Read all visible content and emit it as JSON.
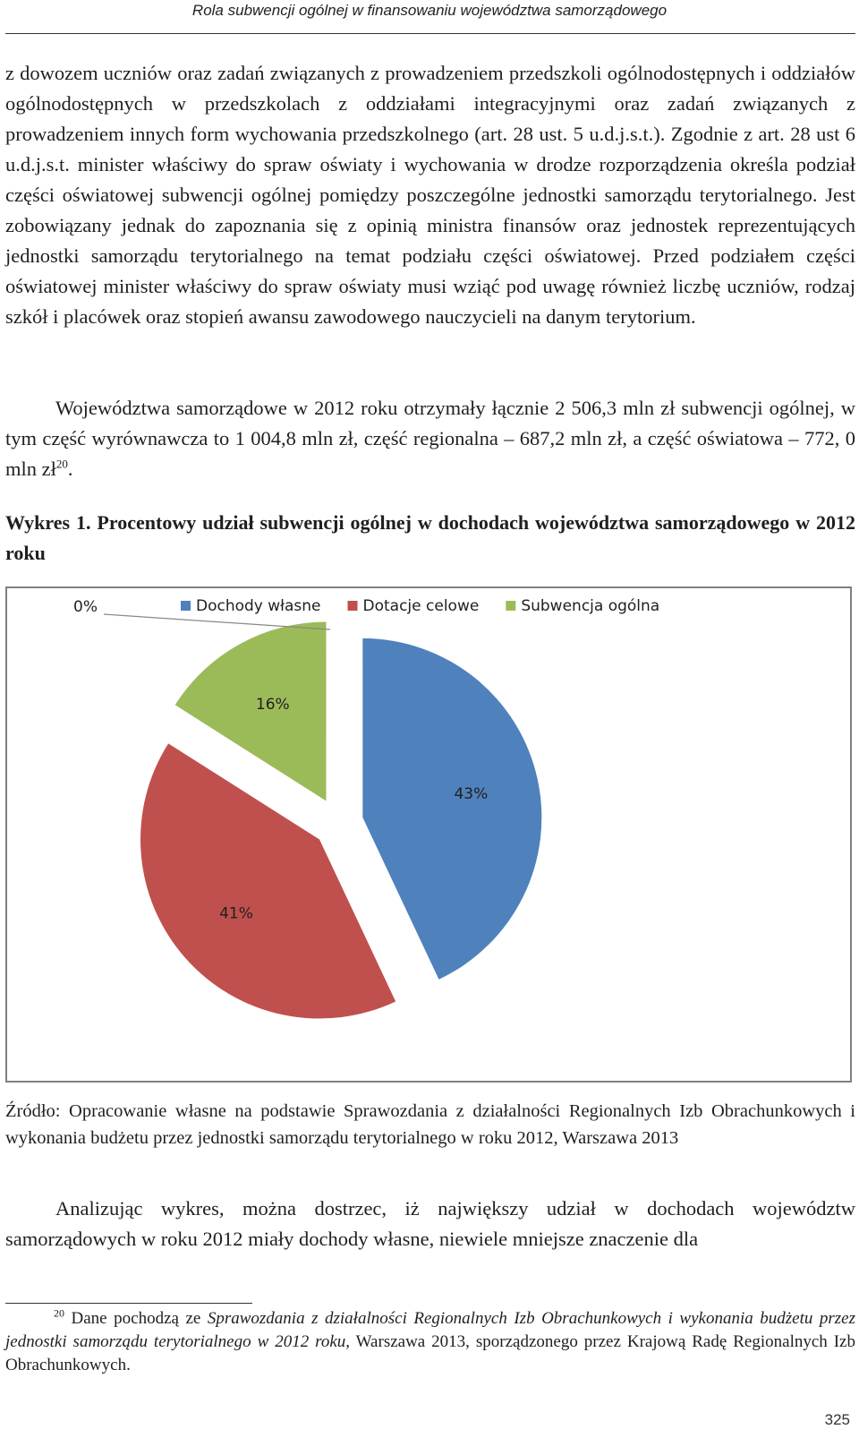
{
  "header": {
    "running_title": "Rola subwencji ogólnej w finansowaniu województwa samorządowego"
  },
  "paragraphs": {
    "p1": "z dowozem uczniów oraz zadań związanych z prowadzeniem przedszkoli ogólnodostępnych i oddziałów ogólnodostępnych w przedszkolach z oddziałami integracyjnymi oraz zadań związanych z prowadzeniem innych form wychowania przedszkolnego (art. 28 ust. 5 u.d.j.s.t.). Zgodnie z art. 28 ust 6 u.d.j.s.t. minister właściwy do spraw oświaty i wychowania w drodze rozporządzenia określa podział części oświatowej subwencji ogólnej pomiędzy poszczególne jednostki samorządu terytorialnego. Jest zobowiązany jednak do zapoznania się z opinią ministra finansów oraz jednostek reprezentujących jednostki samorządu terytorialnego na temat podziału części oświatowej. Przed podziałem części oświatowej minister właściwy do spraw oświaty musi wziąć pod uwagę również liczbę uczniów, rodzaj szkół i placówek oraz stopień awansu zawodowego nauczycieli na danym terytorium.",
    "p2": "Województwa samorządowe w 2012 roku otrzymały łącznie 2 506,3 mln zł subwencji ogólnej, w tym część wyrównawcza to 1 004,8 mln zł, część regionalna – 687,2 mln zł, a część oświatowa – 772, 0 mln zł",
    "p2_footnote_ref": "20",
    "p2_end": ".",
    "p3": "Analizując wykres, można dostrzec, iż największy udział w dochodach województw samorządowych w roku 2012 miały dochody własne, niewiele mniejsze znaczenie dla"
  },
  "figure": {
    "caption": "Wykres 1. Procentowy udział subwencji ogólnej w dochodach województwa samorządowego w 2012 roku",
    "source": "Źródło: Opracowanie własne na podstawie Sprawozdania z działalności Regionalnych Izb Obrachunkowych i wykonania budżetu przez jednostki samorządu terytorialnego w roku 2012, Warszawa 2013"
  },
  "chart_data": {
    "type": "pie",
    "title": "",
    "legend_position": "top",
    "slices": [
      {
        "name": "Dochody własne",
        "value": 43,
        "label": "43%",
        "color": "#4f81bd"
      },
      {
        "name": "Dotacje celowe",
        "value": 41,
        "label": "41%",
        "color": "#c0504d"
      },
      {
        "name": "Subwencja ogólna",
        "value": 16,
        "label": "16%",
        "color": "#9bbb59"
      }
    ],
    "zero_label": "0%"
  },
  "footnote": {
    "number": "20",
    "text_before": "Dane pochodzą ze ",
    "italic_title": "Sprawozdania z działalności Regionalnych Izb Obrachunkowych i wykonania budżetu przez jednostki samorządu terytorialnego w 2012 roku",
    "text_after": ", Warszawa 2013, sporządzonego przez Krajową Radę Regionalnych Izb Obrachunkowych."
  },
  "page_number": "325"
}
